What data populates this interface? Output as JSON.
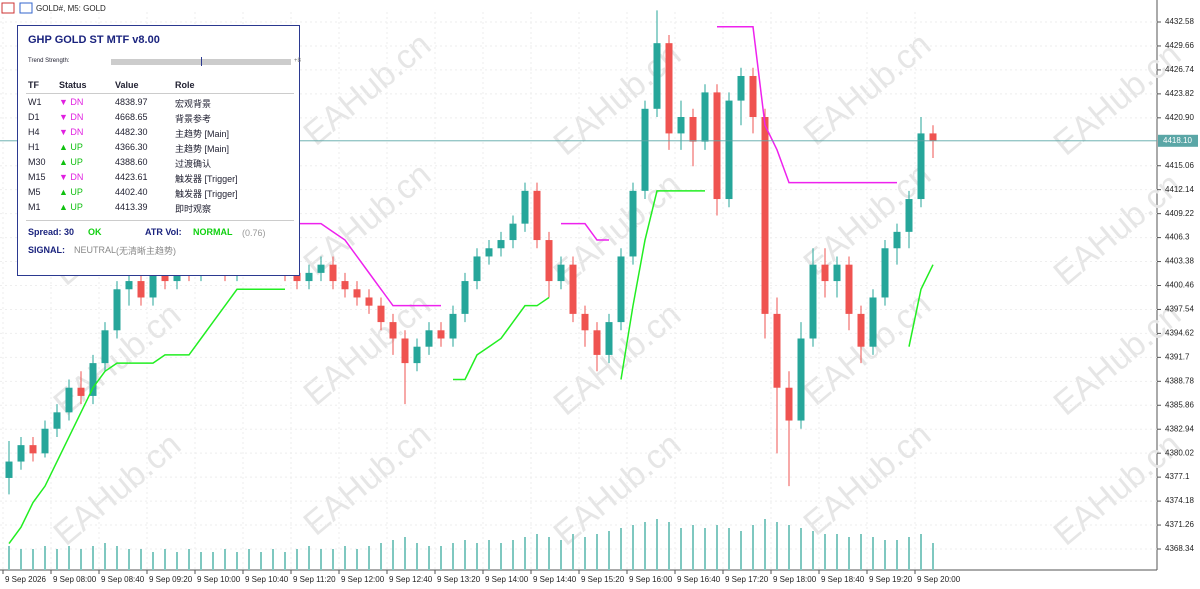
{
  "window_title": "GOLD#, M5: GOLD",
  "watermark": "EAHub.cn",
  "panel": {
    "title": "GHP GOLD ST MTF v8.00",
    "trend_label": "Trend Strength:",
    "trend_value": "+8",
    "headers": [
      "TF",
      "Status",
      "Value",
      "Role"
    ],
    "rows": [
      {
        "tf": "W1",
        "status": "▼ DN",
        "value": "4838.97",
        "role": "宏观背景",
        "color": "#e020e0"
      },
      {
        "tf": "D1",
        "status": "▼ DN",
        "value": "4668.65",
        "role": "背景参考",
        "color": "#e020e0"
      },
      {
        "tf": "H4",
        "status": "▼ DN",
        "value": "4482.30",
        "role": "主趋势 [Main]",
        "color": "#e020e0"
      },
      {
        "tf": "H1",
        "status": "▲ UP",
        "value": "4366.30",
        "role": "主趋势 [Main]",
        "color": "#10c010"
      },
      {
        "tf": "M30",
        "status": "▲ UP",
        "value": "4388.60",
        "role": "过渡确认",
        "color": "#10c010"
      },
      {
        "tf": "M15",
        "status": "▼ DN",
        "value": "4423.61",
        "role": "触发器 [Trigger]",
        "color": "#e020e0"
      },
      {
        "tf": "M5",
        "status": "▲ UP",
        "value": "4402.40",
        "role": "触发器 [Trigger]",
        "color": "#10c010"
      },
      {
        "tf": "M1",
        "status": "▲ UP",
        "value": "4413.39",
        "role": "即时观察",
        "color": "#10c010"
      }
    ],
    "spread_label": "Spread: 30",
    "spread_status": "OK",
    "atr_label": "ATR Vol:",
    "atr_status": "NORMAL",
    "atr_value": "(0.76)",
    "signal_label": "SIGNAL:",
    "signal_value": "NEUTRAL",
    "signal_note": "(无清晰主趋势)"
  },
  "chart_data": {
    "type": "candlestick",
    "grid": true,
    "up_color": "#26a69a",
    "down_color": "#ef5350",
    "volume_color": "#7fc8c0",
    "ylim": [
      4365.78,
      4433.8
    ],
    "yticks": [
      4432.58,
      4429.66,
      4426.74,
      4423.82,
      {
        "value": 4420.9,
        "label": "4420.90"
      },
      4415.06,
      4412.14,
      4409.22,
      4406.3,
      4403.38,
      4400.46,
      4397.54,
      4394.62,
      4391.7,
      4388.78,
      4385.86,
      4382.94,
      4380.02,
      4377.1,
      4374.18,
      4371.26,
      4368.34
    ],
    "last_price": {
      "value": 4418.1,
      "label": "4418.10"
    },
    "xticks": [
      "9 Sep 2026",
      "9 Sep 08:00",
      "9 Sep 08:40",
      "9 Sep 09:20",
      "9 Sep 10:00",
      "9 Sep 10:40",
      "9 Sep 11:20",
      "9 Sep 12:00",
      "9 Sep 12:40",
      "9 Sep 13:20",
      "9 Sep 14:00",
      "9 Sep 14:40",
      "9 Sep 15:20",
      "9 Sep 16:00",
      "9 Sep 16:40",
      "9 Sep 17:20",
      "9 Sep 18:00",
      "9 Sep 18:40",
      "9 Sep 19:20",
      "9 Sep 20:00"
    ],
    "candles": [
      [
        4377,
        4381.5,
        4375,
        4379
      ],
      [
        4379,
        4382,
        4378,
        4381
      ],
      [
        4381,
        4382,
        4379,
        4380
      ],
      [
        4380,
        4384,
        4379.5,
        4383
      ],
      [
        4383,
        4386,
        4382,
        4385
      ],
      [
        4385,
        4389,
        4384,
        4388
      ],
      [
        4388,
        4390,
        4386,
        4387
      ],
      [
        4387,
        4392,
        4386,
        4391
      ],
      [
        4391,
        4396,
        4390,
        4395
      ],
      [
        4395,
        4401,
        4394,
        4400
      ],
      [
        4400,
        4402,
        4398,
        4401
      ],
      [
        4401,
        4403,
        4398,
        4399
      ],
      [
        4399,
        4403,
        4398,
        4402
      ],
      [
        4402,
        4404,
        4400,
        4401
      ],
      [
        4401,
        4404,
        4400,
        4403
      ],
      [
        4403,
        4404,
        4401,
        4402
      ],
      [
        4402,
        4405,
        4401,
        4404
      ],
      [
        4404,
        4405,
        4402,
        4403
      ],
      [
        4403,
        4404,
        4401,
        4402
      ],
      [
        4402,
        4405,
        4401,
        4404
      ],
      [
        4404,
        4405,
        4402,
        4403
      ],
      [
        4403,
        4406,
        4402,
        4405
      ],
      [
        4405,
        4406,
        4403,
        4404
      ],
      [
        4404,
        4405,
        4401,
        4402
      ],
      [
        4402,
        4403,
        4400,
        4401
      ],
      [
        4401,
        4403,
        4400,
        4402
      ],
      [
        4402,
        4404,
        4401,
        4403
      ],
      [
        4403,
        4404,
        4400,
        4401
      ],
      [
        4401,
        4402,
        4399,
        4400
      ],
      [
        4400,
        4401,
        4398,
        4399
      ],
      [
        4399,
        4400,
        4397,
        4398
      ],
      [
        4398,
        4399,
        4395,
        4396
      ],
      [
        4396,
        4397,
        4392,
        4394
      ],
      [
        4394,
        4395,
        4386,
        4391
      ],
      [
        4391,
        4394,
        4390,
        4393
      ],
      [
        4393,
        4396,
        4392,
        4395
      ],
      [
        4395,
        4396,
        4393,
        4394
      ],
      [
        4394,
        4398,
        4393,
        4397
      ],
      [
        4397,
        4402,
        4396,
        4401
      ],
      [
        4401,
        4405,
        4400,
        4404
      ],
      [
        4404,
        4406,
        4403,
        4405
      ],
      [
        4405,
        4407,
        4404,
        4406
      ],
      [
        4406,
        4409,
        4405,
        4408
      ],
      [
        4408,
        4413,
        4407,
        4412
      ],
      [
        4412,
        4413,
        4405,
        4406
      ],
      [
        4406,
        4407,
        4399,
        4401
      ],
      [
        4401,
        4404,
        4400,
        4403
      ],
      [
        4403,
        4404,
        4396,
        4397
      ],
      [
        4397,
        4398,
        4393,
        4395
      ],
      [
        4395,
        4396,
        4390,
        4392
      ],
      [
        4392,
        4397,
        4391,
        4396
      ],
      [
        4396,
        4405,
        4395,
        4404
      ],
      [
        4404,
        4413,
        4403,
        4412
      ],
      [
        4412,
        4423,
        4411,
        4422
      ],
      [
        4422,
        4434,
        4421,
        4430
      ],
      [
        4430,
        4431,
        4417,
        4419
      ],
      [
        4419,
        4423,
        4417,
        4421
      ],
      [
        4421,
        4422,
        4415,
        4418
      ],
      [
        4418,
        4425,
        4417,
        4424
      ],
      [
        4424,
        4425,
        4409,
        4411
      ],
      [
        4411,
        4424,
        4410,
        4423
      ],
      [
        4423,
        4427,
        4420,
        4426
      ],
      [
        4426,
        4427,
        4419,
        4421
      ],
      [
        4421,
        4422,
        4394,
        4397
      ],
      [
        4397,
        4399,
        4380,
        4388
      ],
      [
        4388,
        4390,
        4376,
        4384
      ],
      [
        4384,
        4396,
        4383,
        4394
      ],
      [
        4394,
        4405,
        4393,
        4403
      ],
      [
        4403,
        4405,
        4399,
        4401
      ],
      [
        4401,
        4404,
        4399,
        4403
      ],
      [
        4403,
        4404,
        4395,
        4397
      ],
      [
        4397,
        4398,
        4391,
        4393
      ],
      [
        4393,
        4400,
        4392,
        4399
      ],
      [
        4399,
        4406,
        4398,
        4405
      ],
      [
        4405,
        4408,
        4403,
        4407
      ],
      [
        4407,
        4412,
        4405,
        4411
      ],
      [
        4411,
        4421,
        4410,
        4419
      ],
      [
        4419,
        4420,
        4416,
        4418.1
      ]
    ],
    "volumes": [
      8,
      7,
      7,
      8,
      7,
      8,
      7,
      8,
      9,
      8,
      7,
      7,
      6,
      7,
      6,
      7,
      6,
      6,
      7,
      6,
      7,
      6,
      7,
      6,
      7,
      8,
      7,
      7,
      8,
      7,
      8,
      9,
      10,
      11,
      9,
      8,
      8,
      9,
      10,
      9,
      10,
      9,
      10,
      11,
      12,
      11,
      10,
      12,
      11,
      12,
      13,
      14,
      15,
      16,
      17,
      16,
      14,
      15,
      14,
      15,
      14,
      13,
      15,
      17,
      16,
      15,
      14,
      13,
      12,
      12,
      11,
      12,
      11,
      10,
      10,
      11,
      12,
      9
    ],
    "lines": [
      {
        "color": "#22ee22",
        "values": [
          4369,
          4371,
          4374,
          4376,
          4379,
          4382,
          4385,
          4388,
          4390,
          4391,
          4391,
          4391,
          4391,
          4392,
          4392,
          4392,
          4394,
          4396,
          4398,
          4400,
          4400,
          4400,
          4400,
          4400,
          null,
          null,
          null,
          null,
          null,
          null,
          null,
          null,
          null,
          null,
          null,
          null,
          null,
          4389,
          4389,
          4392,
          4393,
          4394,
          4396,
          4398,
          4398,
          4399,
          null,
          null,
          null,
          null,
          null,
          4389,
          4398,
          4406,
          4412,
          4412,
          4412,
          4412,
          4412,
          null,
          null,
          null,
          null,
          null,
          null,
          null,
          null,
          null,
          null,
          null,
          null,
          null,
          null,
          null,
          null,
          4393,
          4400,
          4403
        ]
      },
      {
        "color": "#ee22ee",
        "values": [
          null,
          null,
          null,
          null,
          null,
          null,
          null,
          null,
          null,
          null,
          null,
          null,
          null,
          null,
          null,
          null,
          null,
          null,
          null,
          null,
          null,
          null,
          null,
          null,
          4408,
          4408,
          4408,
          4407,
          4406,
          4404,
          4402,
          4400,
          4398,
          4398,
          4398,
          4398,
          4398,
          null,
          null,
          null,
          null,
          null,
          null,
          null,
          null,
          null,
          4408,
          4408,
          4408,
          4406,
          4406,
          null,
          null,
          null,
          null,
          null,
          null,
          null,
          null,
          4432,
          4432,
          4432,
          4432,
          4420,
          4417,
          4413,
          4413,
          4413,
          4413,
          4413,
          4413,
          4413,
          4413,
          4413,
          4413,
          null,
          null,
          null
        ]
      }
    ]
  }
}
